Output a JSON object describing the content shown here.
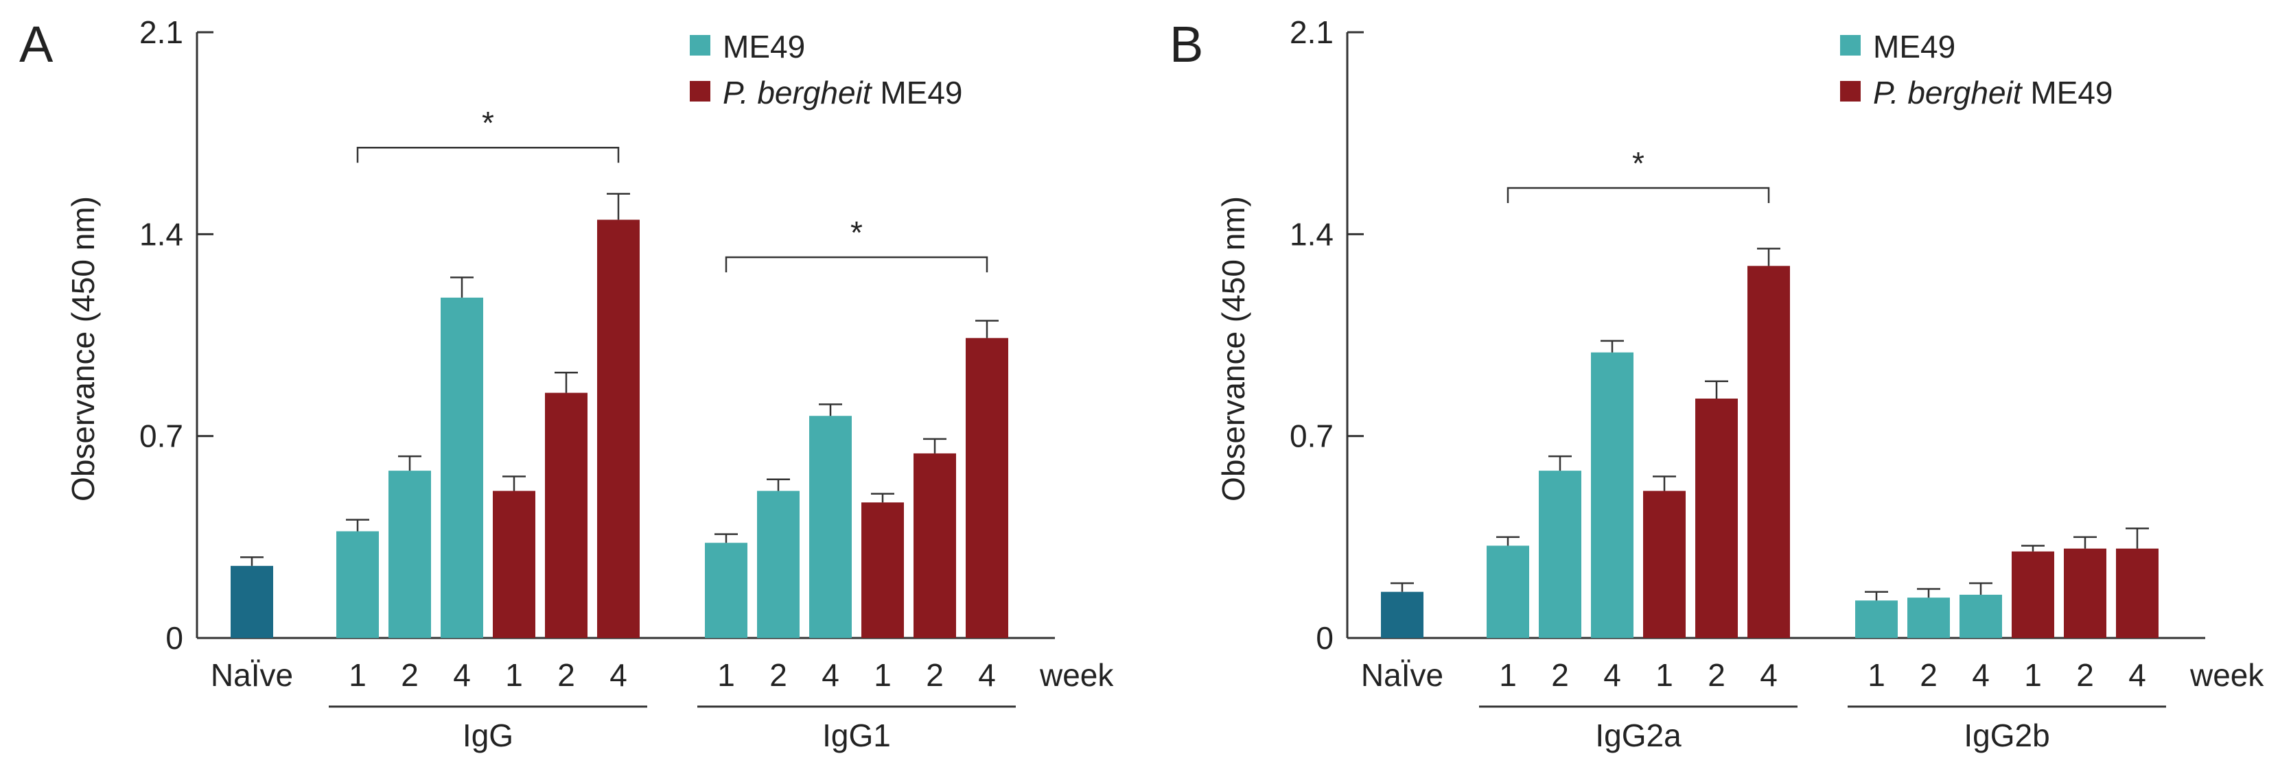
{
  "chart_data": [
    {
      "panel_label": "A",
      "type": "bar",
      "ylabel": "Observance (450 nm)",
      "ylim": [
        0,
        2.1
      ],
      "yticks": [
        "0",
        "0.7",
        "1.4",
        "2.1"
      ],
      "x_unit_label": "week",
      "legend": [
        {
          "name": "ME49",
          "color": "#45ADAD"
        },
        {
          "name_italic": "P. bergheit",
          "name_rest": " ME49",
          "color": "#8B1A1F"
        }
      ],
      "naive": {
        "label": "NaÏve",
        "value": 0.25,
        "error": 0.03,
        "color": "#1B6A86"
      },
      "groups": [
        {
          "name": "IgG",
          "bars": [
            {
              "week": "1",
              "series": "ME49",
              "value": 0.37,
              "error": 0.04,
              "color": "#45ADAD"
            },
            {
              "week": "2",
              "series": "ME49",
              "value": 0.58,
              "error": 0.05,
              "color": "#45ADAD"
            },
            {
              "week": "4",
              "series": "ME49",
              "value": 1.18,
              "error": 0.07,
              "color": "#45ADAD"
            },
            {
              "week": "1",
              "series": "P. bergheit ME49",
              "value": 0.51,
              "error": 0.05,
              "color": "#8B1A1F"
            },
            {
              "week": "2",
              "series": "P. bergheit ME49",
              "value": 0.85,
              "error": 0.07,
              "color": "#8B1A1F"
            },
            {
              "week": "4",
              "series": "P. bergheit ME49",
              "value": 1.45,
              "error": 0.09,
              "color": "#8B1A1F"
            }
          ],
          "significance": {
            "label": "*",
            "from": 0,
            "to": 5,
            "y": 1.7
          }
        },
        {
          "name": "IgG1",
          "bars": [
            {
              "week": "1",
              "series": "ME49",
              "value": 0.33,
              "error": 0.03,
              "color": "#45ADAD"
            },
            {
              "week": "2",
              "series": "ME49",
              "value": 0.51,
              "error": 0.04,
              "color": "#45ADAD"
            },
            {
              "week": "4",
              "series": "ME49",
              "value": 0.77,
              "error": 0.04,
              "color": "#45ADAD"
            },
            {
              "week": "1",
              "series": "P. bergheit ME49",
              "value": 0.47,
              "error": 0.03,
              "color": "#8B1A1F"
            },
            {
              "week": "2",
              "series": "P. bergheit ME49",
              "value": 0.64,
              "error": 0.05,
              "color": "#8B1A1F"
            },
            {
              "week": "4",
              "series": "P. bergheit ME49",
              "value": 1.04,
              "error": 0.06,
              "color": "#8B1A1F"
            }
          ],
          "significance": {
            "label": "*",
            "from": 0,
            "to": 5,
            "y": 1.32
          }
        }
      ]
    },
    {
      "panel_label": "B",
      "type": "bar",
      "ylabel": "Observance (450 nm)",
      "ylim": [
        0,
        2.1
      ],
      "yticks": [
        "0",
        "0.7",
        "1.4",
        "2.1"
      ],
      "x_unit_label": "week",
      "legend": [
        {
          "name": "ME49",
          "color": "#45ADAD"
        },
        {
          "name_italic": "P. bergheit",
          "name_rest": " ME49",
          "color": "#8B1A1F"
        }
      ],
      "naive": {
        "label": "NaÏve",
        "value": 0.16,
        "error": 0.03,
        "color": "#1B6A86"
      },
      "groups": [
        {
          "name": "IgG2a",
          "bars": [
            {
              "week": "1",
              "series": "ME49",
              "value": 0.32,
              "error": 0.03,
              "color": "#45ADAD"
            },
            {
              "week": "2",
              "series": "ME49",
              "value": 0.58,
              "error": 0.05,
              "color": "#45ADAD"
            },
            {
              "week": "4",
              "series": "ME49",
              "value": 0.99,
              "error": 0.04,
              "color": "#45ADAD"
            },
            {
              "week": "1",
              "series": "P. bergheit ME49",
              "value": 0.51,
              "error": 0.05,
              "color": "#8B1A1F"
            },
            {
              "week": "2",
              "series": "P. bergheit ME49",
              "value": 0.83,
              "error": 0.06,
              "color": "#8B1A1F"
            },
            {
              "week": "4",
              "series": "P. bergheit ME49",
              "value": 1.29,
              "error": 0.06,
              "color": "#8B1A1F"
            }
          ],
          "significance": {
            "label": "*",
            "from": 0,
            "to": 5,
            "y": 1.56
          }
        },
        {
          "name": "IgG2b",
          "bars": [
            {
              "week": "1",
              "series": "ME49",
              "value": 0.13,
              "error": 0.03,
              "color": "#45ADAD"
            },
            {
              "week": "2",
              "series": "ME49",
              "value": 0.14,
              "error": 0.03,
              "color": "#45ADAD"
            },
            {
              "week": "4",
              "series": "ME49",
              "value": 0.15,
              "error": 0.04,
              "color": "#45ADAD"
            },
            {
              "week": "1",
              "series": "P. bergheit ME49",
              "value": 0.3,
              "error": 0.02,
              "color": "#8B1A1F"
            },
            {
              "week": "2",
              "series": "P. bergheit ME49",
              "value": 0.31,
              "error": 0.04,
              "color": "#8B1A1F"
            },
            {
              "week": "4",
              "series": "P. bergheit ME49",
              "value": 0.31,
              "error": 0.07,
              "color": "#8B1A1F"
            }
          ]
        }
      ]
    }
  ]
}
